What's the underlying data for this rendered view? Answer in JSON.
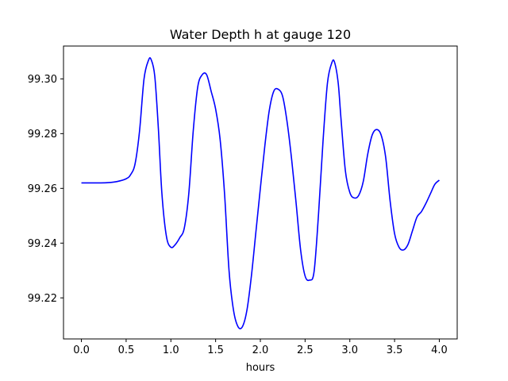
{
  "chart_data": {
    "type": "line",
    "title": "Water Depth h at gauge 120",
    "xlabel": "hours",
    "ylabel": "",
    "xlim": [
      -0.2,
      4.2
    ],
    "ylim": [
      99.205,
      99.312
    ],
    "xticks": [
      0.0,
      0.5,
      1.0,
      1.5,
      2.0,
      2.5,
      3.0,
      3.5,
      4.0
    ],
    "xtick_labels": [
      "0.0",
      "0.5",
      "1.0",
      "1.5",
      "2.0",
      "2.5",
      "3.0",
      "3.5",
      "4.0"
    ],
    "yticks": [
      99.22,
      99.24,
      99.26,
      99.28,
      99.3
    ],
    "ytick_labels": [
      "99.22",
      "99.24",
      "99.26",
      "99.28",
      "99.30"
    ],
    "grid": false,
    "color": "#0000ff",
    "series": [
      {
        "x": [
          0.0,
          0.1,
          0.2,
          0.3,
          0.4,
          0.5,
          0.55,
          0.6,
          0.65,
          0.7,
          0.75,
          0.78,
          0.82,
          0.86,
          0.9,
          0.95,
          1.0,
          1.05,
          1.1,
          1.15,
          1.2,
          1.25,
          1.3,
          1.35,
          1.4,
          1.45,
          1.5,
          1.55,
          1.6,
          1.65,
          1.7,
          1.75,
          1.8,
          1.85,
          1.9,
          1.95,
          2.0,
          2.05,
          2.1,
          2.15,
          2.2,
          2.25,
          2.3,
          2.35,
          2.4,
          2.45,
          2.5,
          2.55,
          2.6,
          2.65,
          2.7,
          2.75,
          2.8,
          2.83,
          2.87,
          2.9,
          2.95,
          3.0,
          3.05,
          3.1,
          3.15,
          3.2,
          3.25,
          3.3,
          3.35,
          3.4,
          3.45,
          3.5,
          3.55,
          3.6,
          3.65,
          3.7,
          3.75,
          3.8,
          3.85,
          3.9,
          3.95,
          4.0
        ],
        "y": [
          99.262,
          99.262,
          99.262,
          99.2621,
          99.2625,
          99.2635,
          99.265,
          99.269,
          99.281,
          99.3,
          99.3068,
          99.307,
          99.301,
          99.282,
          99.258,
          99.2425,
          99.2385,
          99.2395,
          99.242,
          99.2455,
          99.258,
          99.281,
          99.297,
          99.3015,
          99.3015,
          99.2955,
          99.289,
          99.278,
          99.258,
          99.23,
          99.2155,
          99.2095,
          99.2095,
          99.2155,
          99.228,
          99.244,
          99.26,
          99.2755,
          99.2885,
          99.2955,
          99.2962,
          99.2935,
          99.284,
          99.2705,
          99.2545,
          99.2375,
          99.228,
          99.2265,
          99.2295,
          99.2505,
          99.277,
          99.2985,
          99.306,
          99.306,
          99.2985,
          99.286,
          99.2665,
          99.2585,
          99.2565,
          99.2575,
          99.2625,
          99.2725,
          99.2795,
          99.2815,
          99.2795,
          99.2715,
          99.2555,
          99.2435,
          99.2385,
          99.2375,
          99.2395,
          99.2445,
          99.2495,
          99.2515,
          99.2545,
          99.258,
          99.2615,
          99.263
        ]
      }
    ]
  }
}
